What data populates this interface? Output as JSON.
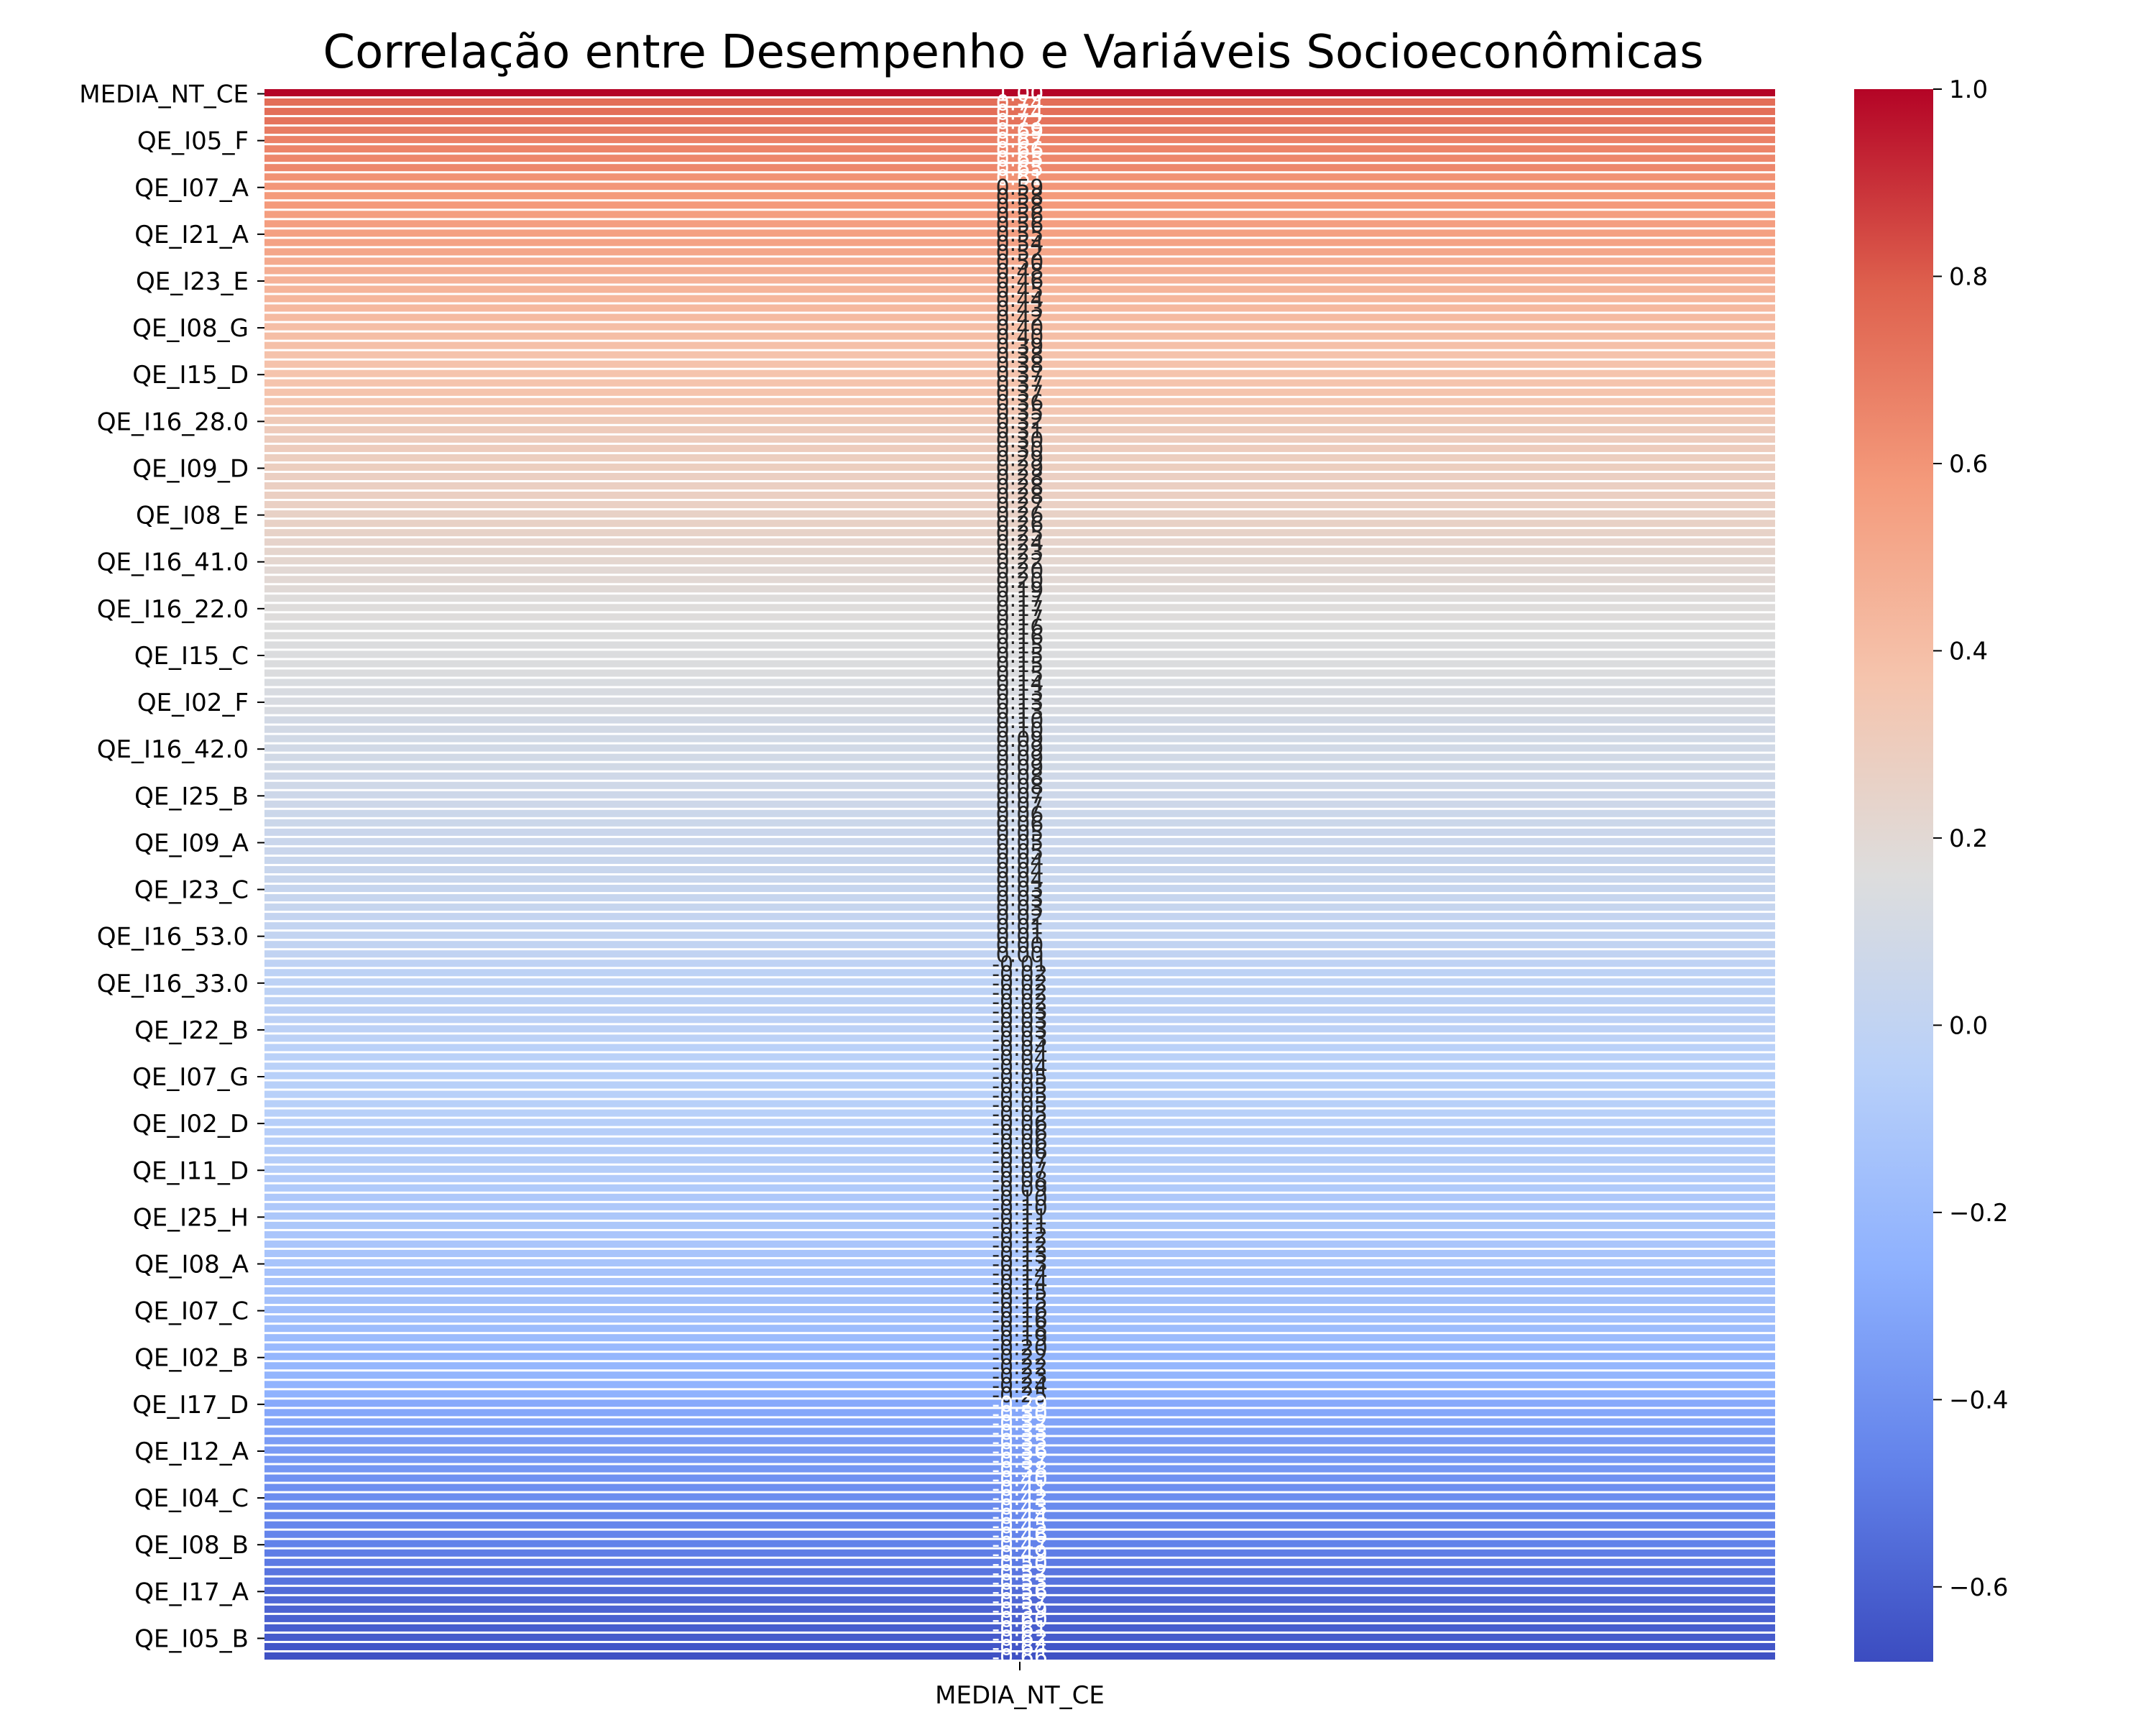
{
  "chart_data": {
    "type": "heatmap",
    "title": "Correlação entre Desempenho e Variáveis Socioeconômicas",
    "x_categories": [
      "MEDIA_NT_CE"
    ],
    "colorbar": {
      "colormap": "coolwarm",
      "vmin": -0.68,
      "vmax": 1.0,
      "ticks": [
        "1.0",
        "0.8",
        "0.6",
        "0.4",
        "0.2",
        "0.0",
        "−0.2",
        "−0.4",
        "−0.6"
      ],
      "tick_values": [
        1.0,
        0.8,
        0.6,
        0.4,
        0.2,
        0.0,
        -0.2,
        -0.4,
        -0.6
      ]
    },
    "row_count": 168,
    "label_every": 5,
    "y_tick_labels": [
      {
        "row": 0,
        "label": "MEDIA_NT_CE"
      },
      {
        "row": 5,
        "label": "QE_I05_F"
      },
      {
        "row": 10,
        "label": "QE_I07_A"
      },
      {
        "row": 15,
        "label": "QE_I21_A"
      },
      {
        "row": 20,
        "label": "QE_I23_E"
      },
      {
        "row": 25,
        "label": "QE_I08_G"
      },
      {
        "row": 30,
        "label": "QE_I15_D"
      },
      {
        "row": 35,
        "label": "QE_I16_28.0"
      },
      {
        "row": 40,
        "label": "QE_I09_D"
      },
      {
        "row": 45,
        "label": "QE_I08_E"
      },
      {
        "row": 50,
        "label": "QE_I16_41.0"
      },
      {
        "row": 55,
        "label": "QE_I16_22.0"
      },
      {
        "row": 60,
        "label": "QE_I15_C"
      },
      {
        "row": 65,
        "label": "QE_I02_F"
      },
      {
        "row": 70,
        "label": "QE_I16_42.0"
      },
      {
        "row": 75,
        "label": "QE_I25_B"
      },
      {
        "row": 80,
        "label": "QE_I09_A"
      },
      {
        "row": 85,
        "label": "QE_I23_C"
      },
      {
        "row": 90,
        "label": "QE_I16_53.0"
      },
      {
        "row": 95,
        "label": "QE_I16_33.0"
      },
      {
        "row": 100,
        "label": "QE_I22_B"
      },
      {
        "row": 105,
        "label": "QE_I07_G"
      },
      {
        "row": 110,
        "label": "QE_I02_D"
      },
      {
        "row": 115,
        "label": "QE_I11_D"
      },
      {
        "row": 120,
        "label": "QE_I25_H"
      },
      {
        "row": 125,
        "label": "QE_I08_A"
      },
      {
        "row": 130,
        "label": "QE_I07_C"
      },
      {
        "row": 135,
        "label": "QE_I02_B"
      },
      {
        "row": 140,
        "label": "QE_I17_D"
      },
      {
        "row": 145,
        "label": "QE_I12_A"
      },
      {
        "row": 150,
        "label": "QE_I04_C"
      },
      {
        "row": 155,
        "label": "QE_I08_B"
      },
      {
        "row": 160,
        "label": "QE_I17_A"
      },
      {
        "row": 165,
        "label": "QE_I05_B"
      }
    ],
    "values": [
      1.0,
      0.74,
      0.74,
      0.72,
      0.69,
      0.67,
      0.66,
      0.65,
      0.65,
      0.61,
      0.59,
      0.58,
      0.58,
      0.56,
      0.56,
      0.55,
      0.54,
      0.52,
      0.5,
      0.48,
      0.46,
      0.45,
      0.44,
      0.43,
      0.42,
      0.4,
      0.4,
      0.39,
      0.38,
      0.38,
      0.37,
      0.37,
      0.37,
      0.36,
      0.35,
      0.32,
      0.31,
      0.3,
      0.3,
      0.29,
      0.29,
      0.28,
      0.28,
      0.28,
      0.27,
      0.26,
      0.26,
      0.25,
      0.24,
      0.23,
      0.22,
      0.2,
      0.2,
      0.19,
      0.17,
      0.17,
      0.17,
      0.16,
      0.16,
      0.15,
      0.15,
      0.15,
      0.15,
      0.14,
      0.13,
      0.13,
      0.13,
      0.1,
      0.1,
      0.09,
      0.09,
      0.09,
      0.09,
      0.08,
      0.08,
      0.07,
      0.07,
      0.06,
      0.06,
      0.05,
      0.05,
      0.05,
      0.04,
      0.04,
      0.04,
      0.03,
      0.03,
      0.03,
      0.02,
      0.01,
      0.01,
      0.0,
      0.0,
      -0.01,
      -0.02,
      -0.02,
      -0.02,
      -0.02,
      -0.03,
      -0.03,
      -0.03,
      -0.03,
      -0.04,
      -0.04,
      -0.04,
      -0.05,
      -0.05,
      -0.05,
      -0.05,
      -0.05,
      -0.06,
      -0.06,
      -0.06,
      -0.06,
      -0.07,
      -0.07,
      -0.08,
      -0.09,
      -0.1,
      -0.1,
      -0.11,
      -0.11,
      -0.12,
      -0.12,
      -0.13,
      -0.13,
      -0.14,
      -0.14,
      -0.15,
      -0.15,
      -0.16,
      -0.16,
      -0.18,
      -0.19,
      -0.2,
      -0.22,
      -0.22,
      -0.23,
      -0.24,
      -0.25,
      -0.29,
      -0.3,
      -0.32,
      -0.33,
      -0.35,
      -0.36,
      -0.37,
      -0.38,
      -0.4,
      -0.41,
      -0.42,
      -0.43,
      -0.44,
      -0.45,
      -0.46,
      -0.47,
      -0.49,
      -0.5,
      -0.52,
      -0.53,
      -0.56,
      -0.57,
      -0.59,
      -0.6,
      -0.61,
      -0.62,
      -0.64,
      -0.66
    ]
  }
}
